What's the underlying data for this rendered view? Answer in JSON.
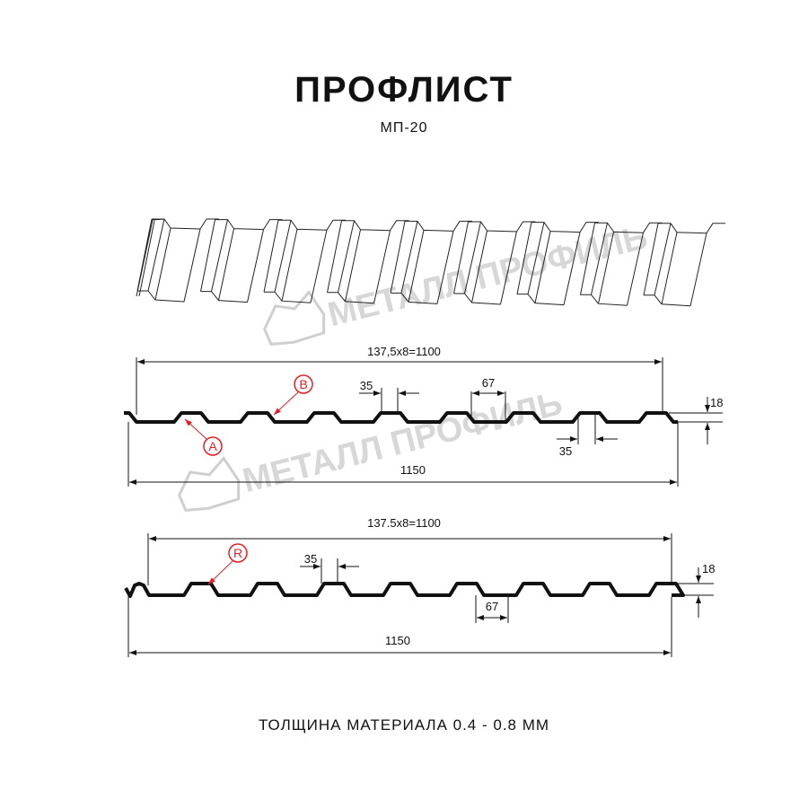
{
  "header": {
    "title": "ПРОФЛИСТ",
    "subtitle": "МП-20"
  },
  "watermark": {
    "text": "МЕТАЛЛ ПРОФИЛЬ",
    "color": "#bdbdbd"
  },
  "profile_top": {
    "pitch_label": "137,5x8=1100",
    "width_label": "1150",
    "rib_top_label": "35",
    "rib_bottom_label": "35",
    "valley_label": "67",
    "height_label": "18",
    "callouts": [
      "B",
      "A"
    ]
  },
  "profile_bottom": {
    "pitch_label": "137.5x8=1100",
    "width_label": "1150",
    "rib_top_label": "35",
    "valley_label": "67",
    "height_label": "18",
    "callouts": [
      "R"
    ]
  },
  "footer": {
    "thickness": "ТОЛЩИНА МАТЕРИАЛА 0.4 - 0.8 ММ"
  },
  "colors": {
    "line": "#111111",
    "callout": "#e31e24"
  }
}
